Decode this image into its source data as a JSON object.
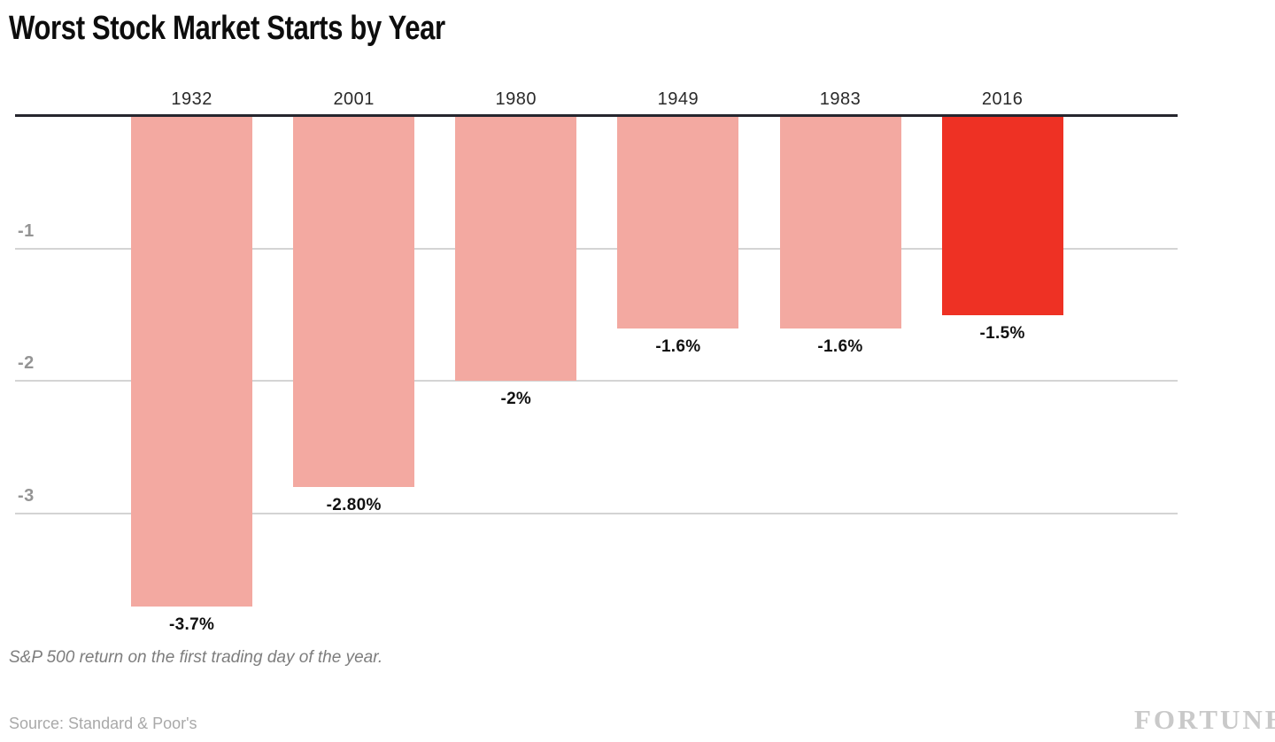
{
  "header": {
    "title": "Worst Stock Market Starts by Year"
  },
  "chart_data": {
    "type": "bar",
    "title": "Worst Stock Market Starts by Year",
    "categories": [
      "1932",
      "2001",
      "1980",
      "1949",
      "1983",
      "2016"
    ],
    "values": [
      -3.7,
      -2.8,
      -2.0,
      -1.6,
      -1.6,
      -1.5
    ],
    "value_labels": [
      "-3.7%",
      "-2.80%",
      "-2%",
      "-1.6%",
      "-1.6%",
      "-1.5%"
    ],
    "highlight_index": 5,
    "xlabel": "",
    "ylabel": "",
    "ylim": [
      -3.75,
      0
    ],
    "y_ticks": [
      "-1",
      "-2",
      "-3"
    ],
    "y_tick_values": [
      -1,
      -2,
      -3
    ],
    "grid": "horizontal gridlines on, baseline on top",
    "legend": "none",
    "orientation": "vertical bars extending downward from zero baseline"
  },
  "colors": {
    "bar_default": "#f3a9a1",
    "bar_highlight": "#ee3124",
    "baseline": "#26262e",
    "gridline": "#d4d4d4",
    "ytick_label": "#949494"
  },
  "footer": {
    "footnote": "S&P 500 return on the first trading day of the year.",
    "source": "Source: Standard & Poor's",
    "brand": "FORTUNE"
  }
}
